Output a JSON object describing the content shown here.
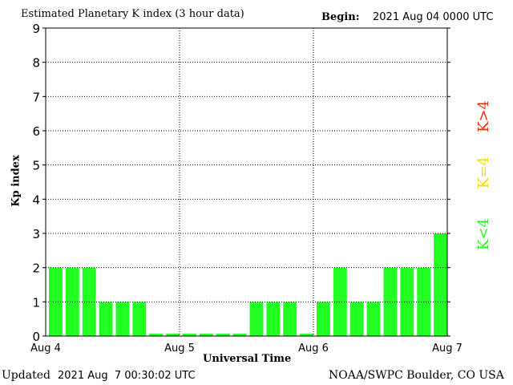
{
  "chart_data": {
    "type": "bar",
    "title": "Estimated Planetary K index (3 hour data)",
    "begin_label": "Begin:",
    "begin_value": "2021 Aug 04 0000 UTC",
    "xlabel": "Universal Time",
    "ylabel": "Kp index",
    "ylim": [
      0,
      9
    ],
    "yticks": [
      "0",
      "1",
      "2",
      "3",
      "4",
      "5",
      "6",
      "7",
      "8",
      "9"
    ],
    "xticks": [
      "Aug 4",
      "Aug 5",
      "Aug 6",
      "Aug 7"
    ],
    "grid": "dotted",
    "values": [
      2,
      2,
      2,
      1,
      1,
      1,
      0,
      0,
      0,
      0,
      0,
      0,
      1,
      1,
      1,
      0,
      1,
      2,
      1,
      1,
      2,
      2,
      2,
      3
    ],
    "bar_color": "#22ff22",
    "legend": [
      {
        "label": "K>4",
        "color": "#ff2a00"
      },
      {
        "label": "K=4",
        "color": "#ffd700"
      },
      {
        "label": "K<4",
        "color": "#22ff22"
      }
    ],
    "legend_placement": "right"
  },
  "footer": {
    "updated_label": "Updated",
    "updated_value": "2021 Aug  7 00:30:02 UTC",
    "source": "NOAA/SWPC Boulder, CO USA"
  }
}
